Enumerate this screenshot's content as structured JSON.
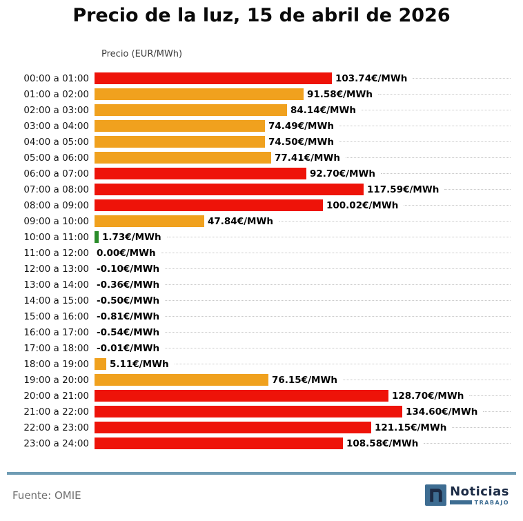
{
  "page": {
    "title": "Precio de la luz, 15 de abril de 2026"
  },
  "chart_data": {
    "type": "bar",
    "orientation": "horizontal",
    "title": "Precio de la luz, 15 de abril de 2026",
    "axis_label": "Precio (EUR/MWh)",
    "unit": "EUR/MWh",
    "xlim": [
      0,
      140
    ],
    "grid": "dotted row leader lines, light gray",
    "legend": "none",
    "palette": {
      "high": "#ee1309",
      "mid": "#f0a11e",
      "low": "#2a8c2a"
    },
    "rows": [
      {
        "category": "00:00 a 01:00",
        "value": 103.74,
        "label": "103.74€/MWh",
        "level": "high"
      },
      {
        "category": "01:00 a 02:00",
        "value": 91.58,
        "label": "91.58€/MWh",
        "level": "mid"
      },
      {
        "category": "02:00 a 03:00",
        "value": 84.14,
        "label": "84.14€/MWh",
        "level": "mid"
      },
      {
        "category": "03:00 a 04:00",
        "value": 74.49,
        "label": "74.49€/MWh",
        "level": "mid"
      },
      {
        "category": "04:00 a 05:00",
        "value": 74.5,
        "label": "74.50€/MWh",
        "level": "mid"
      },
      {
        "category": "05:00 a 06:00",
        "value": 77.41,
        "label": "77.41€/MWh",
        "level": "mid"
      },
      {
        "category": "06:00 a 07:00",
        "value": 92.7,
        "label": "92.70€/MWh",
        "level": "high"
      },
      {
        "category": "07:00 a 08:00",
        "value": 117.59,
        "label": "117.59€/MWh",
        "level": "high"
      },
      {
        "category": "08:00 a 09:00",
        "value": 100.02,
        "label": "100.02€/MWh",
        "level": "high"
      },
      {
        "category": "09:00 a 10:00",
        "value": 47.84,
        "label": "47.84€/MWh",
        "level": "mid"
      },
      {
        "category": "10:00 a 11:00",
        "value": 1.73,
        "label": "1.73€/MWh",
        "level": "low"
      },
      {
        "category": "11:00 a 12:00",
        "value": 0.0,
        "label": "0.00€/MWh",
        "level": "none"
      },
      {
        "category": "12:00 a 13:00",
        "value": -0.1,
        "label": "-0.10€/MWh",
        "level": "none"
      },
      {
        "category": "13:00 a 14:00",
        "value": -0.36,
        "label": "-0.36€/MWh",
        "level": "none"
      },
      {
        "category": "14:00 a 15:00",
        "value": -0.5,
        "label": "-0.50€/MWh",
        "level": "none"
      },
      {
        "category": "15:00 a 16:00",
        "value": -0.81,
        "label": "-0.81€/MWh",
        "level": "none"
      },
      {
        "category": "16:00 a 17:00",
        "value": -0.54,
        "label": "-0.54€/MWh",
        "level": "none"
      },
      {
        "category": "17:00 a 18:00",
        "value": -0.01,
        "label": "-0.01€/MWh",
        "level": "none"
      },
      {
        "category": "18:00 a 19:00",
        "value": 5.11,
        "label": "5.11€/MWh",
        "level": "mid"
      },
      {
        "category": "19:00 a 20:00",
        "value": 76.15,
        "label": "76.15€/MWh",
        "level": "mid"
      },
      {
        "category": "20:00 a 21:00",
        "value": 128.7,
        "label": "128.70€/MWh",
        "level": "high"
      },
      {
        "category": "21:00 a 22:00",
        "value": 134.6,
        "label": "134.60€/MWh",
        "level": "high"
      },
      {
        "category": "22:00 a 23:00",
        "value": 121.15,
        "label": "121.15€/MWh",
        "level": "high"
      },
      {
        "category": "23:00 a 24:00",
        "value": 108.58,
        "label": "108.58€/MWh",
        "level": "high"
      }
    ]
  },
  "footer": {
    "source": "Fuente: OMIE",
    "divider_color": "#6f9cb4",
    "logo": {
      "name": "Noticias",
      "tagline": "TRABAJO",
      "icon_color": "#3e6d92",
      "text_color": "#1c2b45"
    }
  }
}
